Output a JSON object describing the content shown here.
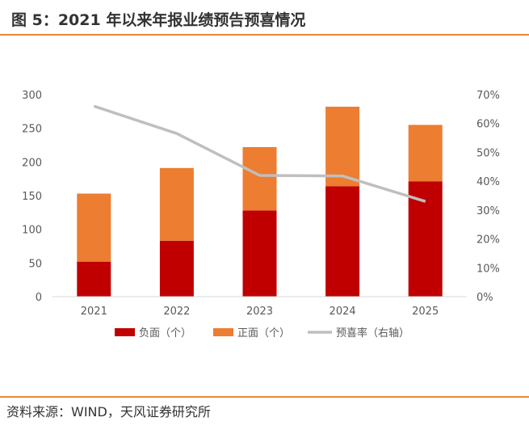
{
  "title": "图 5：2021 年以来年报业绩预告预喜情况",
  "source": "资料来源：WIND，天风证券研究所",
  "colors": {
    "negative": "#c00000",
    "positive": "#ed7d31",
    "line": "#bfbfbf",
    "accent": "#e98a3a"
  },
  "chart_data": {
    "type": "bar",
    "stacked": true,
    "categories": [
      "2021",
      "2022",
      "2023",
      "2024",
      "2025"
    ],
    "series": [
      {
        "name": "负面（个）",
        "type": "bar",
        "axis": "left",
        "values": [
          52,
          83,
          128,
          164,
          171
        ]
      },
      {
        "name": "正面（个）",
        "type": "bar",
        "axis": "left",
        "values": [
          101,
          108,
          94,
          118,
          84
        ]
      },
      {
        "name": "预喜率（右轴）",
        "type": "line",
        "axis": "right",
        "values": [
          0.66,
          0.565,
          0.42,
          0.418,
          0.33
        ]
      }
    ],
    "ylim": [
      0,
      300
    ],
    "yticks": [
      "0",
      "50",
      "100",
      "150",
      "200",
      "250",
      "300"
    ],
    "y2lim": [
      0,
      0.7
    ],
    "y2ticks": [
      "0%",
      "10%",
      "20%",
      "30%",
      "40%",
      "50%",
      "60%",
      "70%"
    ],
    "grid": false,
    "legend_position": "bottom"
  }
}
